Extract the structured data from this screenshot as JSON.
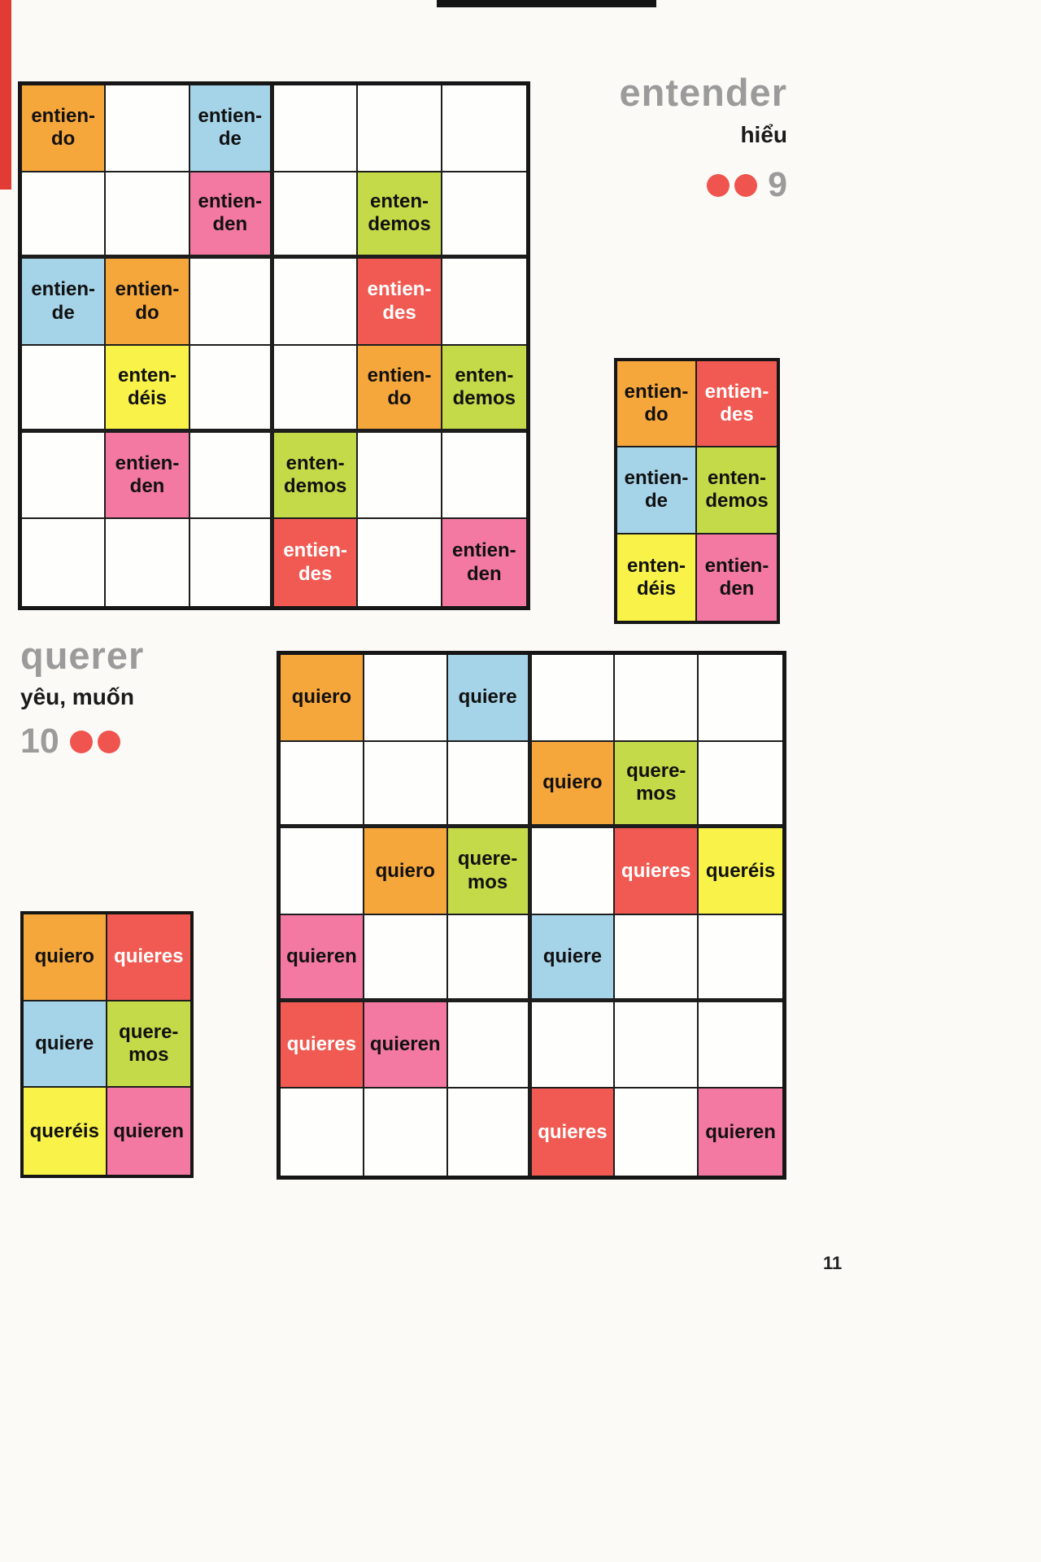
{
  "page_number": "11",
  "colors": {
    "orange": "#F6A73C",
    "red": "#F15A52",
    "blue": "#A5D3E8",
    "green": "#C4DA48",
    "yellow": "#F8F249",
    "pink": "#F379A3",
    "title_gray": "#9B9B9B",
    "dot_red": "#F0544F"
  },
  "puzzle_entender": {
    "title": "entender",
    "translation": "hiểu",
    "number": "9",
    "dots": 2,
    "grid": [
      [
        {
          "t": "entien-\ndo",
          "c": "orange"
        },
        null,
        {
          "t": "entien-\nde",
          "c": "blue"
        },
        null,
        null,
        null
      ],
      [
        null,
        null,
        {
          "t": "entien-\nden",
          "c": "pink"
        },
        null,
        {
          "t": "enten-\ndemos",
          "c": "green"
        },
        null
      ],
      [
        {
          "t": "entien-\nde",
          "c": "blue"
        },
        {
          "t": "entien-\ndo",
          "c": "orange"
        },
        null,
        null,
        {
          "t": "entien-\ndes",
          "c": "red"
        },
        null
      ],
      [
        null,
        {
          "t": "enten-\ndéis",
          "c": "yellow"
        },
        null,
        null,
        {
          "t": "entien-\ndo",
          "c": "orange"
        },
        {
          "t": "enten-\ndemos",
          "c": "green"
        }
      ],
      [
        null,
        {
          "t": "entien-\nden",
          "c": "pink"
        },
        null,
        {
          "t": "enten-\ndemos",
          "c": "green"
        },
        null,
        null
      ],
      [
        null,
        null,
        null,
        {
          "t": "entien-\ndes",
          "c": "red"
        },
        null,
        {
          "t": "entien-\nden",
          "c": "pink"
        }
      ]
    ],
    "legend": [
      [
        {
          "t": "entien-\ndo",
          "c": "orange"
        },
        {
          "t": "entien-\ndes",
          "c": "red"
        }
      ],
      [
        {
          "t": "entien-\nde",
          "c": "blue"
        },
        {
          "t": "enten-\ndemos",
          "c": "green"
        }
      ],
      [
        {
          "t": "enten-\ndéis",
          "c": "yellow"
        },
        {
          "t": "entien-\nden",
          "c": "pink"
        }
      ]
    ]
  },
  "puzzle_querer": {
    "title": "querer",
    "translation": "yêu, muốn",
    "number": "10",
    "dots": 2,
    "grid": [
      [
        {
          "t": "quiero",
          "c": "orange"
        },
        null,
        {
          "t": "quiere",
          "c": "blue"
        },
        null,
        null,
        null
      ],
      [
        null,
        null,
        null,
        {
          "t": "quiero",
          "c": "orange"
        },
        {
          "t": "quere-\nmos",
          "c": "green"
        },
        null
      ],
      [
        null,
        {
          "t": "quiero",
          "c": "orange"
        },
        {
          "t": "quere-\nmos",
          "c": "green"
        },
        null,
        {
          "t": "quieres",
          "c": "red"
        },
        {
          "t": "queréis",
          "c": "yellow"
        }
      ],
      [
        {
          "t": "quieren",
          "c": "pink"
        },
        null,
        null,
        {
          "t": "quiere",
          "c": "blue"
        },
        null,
        null
      ],
      [
        {
          "t": "quieres",
          "c": "red"
        },
        {
          "t": "quieren",
          "c": "pink"
        },
        null,
        null,
        null,
        null
      ],
      [
        null,
        null,
        null,
        {
          "t": "quieres",
          "c": "red"
        },
        null,
        {
          "t": "quieren",
          "c": "pink"
        }
      ]
    ],
    "legend": [
      [
        {
          "t": "quiero",
          "c": "orange"
        },
        {
          "t": "quieres",
          "c": "red"
        }
      ],
      [
        {
          "t": "quiere",
          "c": "blue"
        },
        {
          "t": "quere-\nmos",
          "c": "green"
        }
      ],
      [
        {
          "t": "queréis",
          "c": "yellow"
        },
        {
          "t": "quieren",
          "c": "pink"
        }
      ]
    ]
  }
}
